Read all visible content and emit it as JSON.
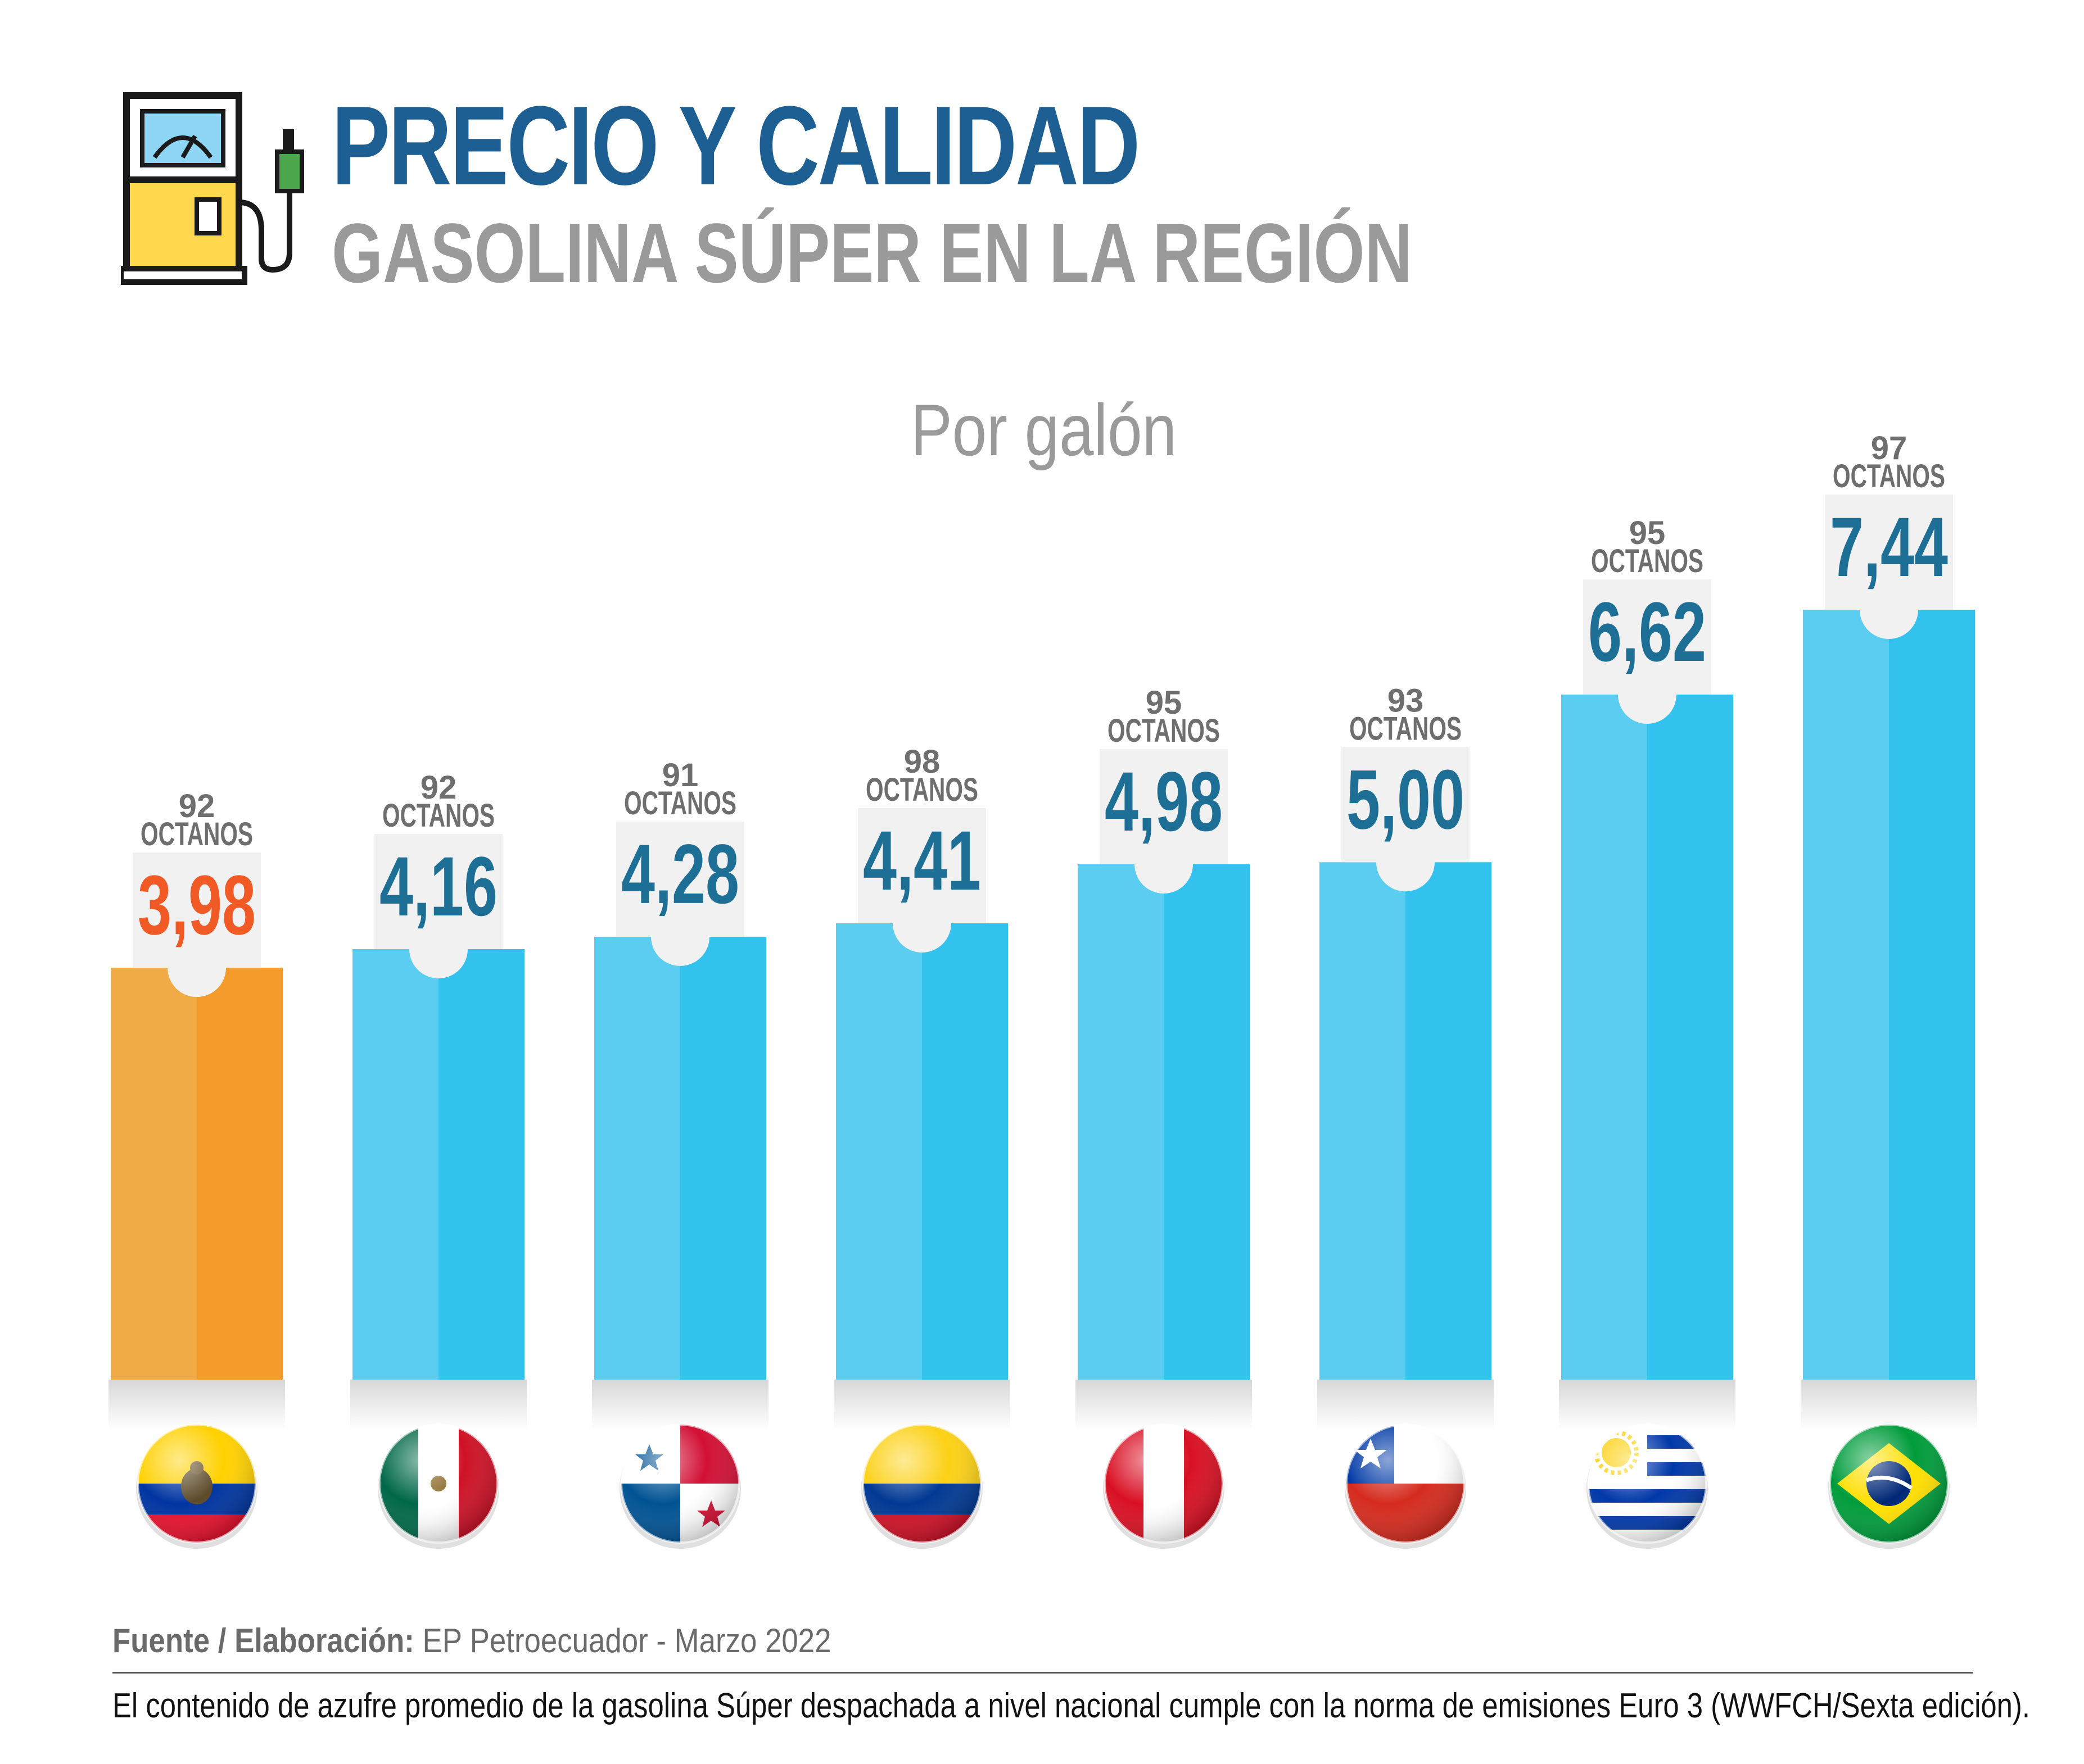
{
  "header": {
    "title": "PRECIO Y CALIDAD",
    "subtitle": "GASOLINA SÚPER EN LA REGIÓN",
    "unit_label": "Por galón"
  },
  "footer": {
    "source_label": "Fuente / Elaboración:",
    "source_text": "EP Petroecuador - Marzo 2022",
    "note": "El contenido de azufre promedio de la gasolina Súper despachada a nivel nacional cumple con la norma de emisiones Euro 3 (WWFCH/Sexta edición)."
  },
  "colors": {
    "highlight": "#f39c2c",
    "bar": "#33c1ee",
    "title": "#1d5f93",
    "value": "#1d6f95",
    "value_highlight": "#f15a24"
  },
  "chart_data": {
    "type": "bar",
    "title": "",
    "xlabel": "",
    "ylabel": "Por galón",
    "categories": [
      "ecuador-flag-icon",
      "mexico-flag-icon",
      "panama-flag-icon",
      "colombia-flag-icon",
      "peru-flag-icon",
      "chile-flag-icon",
      "uruguay-flag-icon",
      "brazil-flag-icon"
    ],
    "values": [
      3.98,
      4.16,
      4.28,
      4.41,
      4.98,
      5.0,
      6.62,
      7.44
    ],
    "value_labels": [
      "3,98",
      "4,16",
      "4,28",
      "4,41",
      "4,98",
      "5,00",
      "6,62",
      "7,44"
    ],
    "octane_numbers": [
      "92",
      "92",
      "91",
      "98",
      "95",
      "93",
      "95",
      "97"
    ],
    "octane_word": "OCTANOS",
    "highlight_index": 0,
    "ylim": [
      0,
      7.44
    ],
    "grid": false,
    "legend": "none"
  }
}
